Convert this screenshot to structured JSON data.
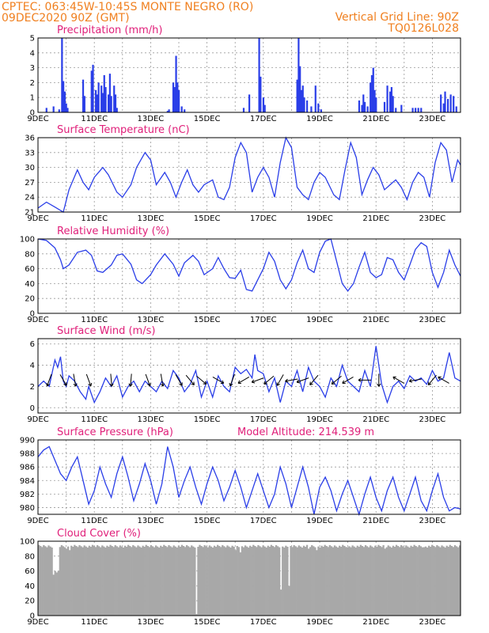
{
  "header": {
    "left_line1": "CPTEC:   063:45W-10:45S   MONTE NEGRO (RO)",
    "left_line2": "09DEC2020 90Z (GMT)",
    "right_line1": "Vertical Grid Line: 90Z",
    "right_line2": "TQ0126L028"
  },
  "colors": {
    "header": "#f08020",
    "panel_title": "#e0207a",
    "series": "#2a3ee8",
    "cloud": "#a8a8a8"
  },
  "chart_data": [
    {
      "type": "bar",
      "title": "Precipitation (mm/h)",
      "x_ticks": [
        "9DEC",
        "11DEC",
        "13DEC",
        "15DEC",
        "17DEC",
        "19DEC",
        "21DEC",
        "23DEC"
      ],
      "yticks": [
        0,
        1,
        2,
        3,
        4,
        5
      ],
      "ylim": [
        0,
        5
      ],
      "xlim": [
        0,
        15
      ],
      "bars": [
        [
          0.3,
          0.3
        ],
        [
          0.55,
          0.4
        ],
        [
          0.75,
          0.2
        ],
        [
          0.85,
          5.0
        ],
        [
          0.9,
          2.1
        ],
        [
          0.95,
          1.4
        ],
        [
          1.0,
          0.6
        ],
        [
          1.05,
          0.3
        ],
        [
          1.6,
          2.2
        ],
        [
          1.65,
          1.1
        ],
        [
          1.9,
          2.8
        ],
        [
          1.95,
          3.2
        ],
        [
          2.05,
          1.5
        ],
        [
          2.1,
          1.2
        ],
        [
          2.15,
          2.0
        ],
        [
          2.25,
          1.8
        ],
        [
          2.3,
          1.3
        ],
        [
          2.35,
          2.5
        ],
        [
          2.4,
          1.7
        ],
        [
          2.5,
          1.2
        ],
        [
          2.55,
          2.6
        ],
        [
          2.6,
          1.1
        ],
        [
          2.7,
          1.8
        ],
        [
          2.75,
          1.2
        ],
        [
          2.8,
          0.3
        ],
        [
          4.6,
          0.1
        ],
        [
          4.65,
          0.2
        ],
        [
          4.8,
          2.0
        ],
        [
          4.85,
          1.7
        ],
        [
          4.9,
          3.8
        ],
        [
          4.95,
          2.0
        ],
        [
          5.0,
          1.5
        ],
        [
          5.1,
          0.4
        ],
        [
          5.2,
          0.2
        ],
        [
          7.3,
          0.3
        ],
        [
          7.5,
          1.2
        ],
        [
          7.85,
          5.0
        ],
        [
          7.9,
          2.4
        ],
        [
          8.0,
          1.0
        ],
        [
          8.05,
          0.5
        ],
        [
          9.2,
          2.2
        ],
        [
          9.25,
          5.0
        ],
        [
          9.3,
          3.1
        ],
        [
          9.35,
          1.5
        ],
        [
          9.4,
          1.8
        ],
        [
          9.45,
          1.0
        ],
        [
          9.55,
          0.8
        ],
        [
          9.7,
          0.4
        ],
        [
          9.85,
          1.8
        ],
        [
          9.95,
          0.6
        ],
        [
          10.05,
          0.2
        ],
        [
          11.4,
          0.8
        ],
        [
          11.5,
          0.5
        ],
        [
          11.55,
          1.2
        ],
        [
          11.6,
          0.7
        ],
        [
          11.7,
          0.4
        ],
        [
          11.8,
          2.0
        ],
        [
          11.85,
          2.5
        ],
        [
          11.9,
          3.0
        ],
        [
          11.95,
          1.5
        ],
        [
          12.0,
          1.0
        ],
        [
          12.3,
          0.7
        ],
        [
          12.4,
          1.8
        ],
        [
          12.5,
          1.4
        ],
        [
          12.55,
          1.7
        ],
        [
          12.6,
          1.1
        ],
        [
          12.7,
          0.3
        ],
        [
          12.9,
          0.5
        ],
        [
          13.3,
          0.3
        ],
        [
          13.4,
          0.3
        ],
        [
          13.5,
          0.3
        ],
        [
          13.6,
          0.3
        ],
        [
          14.3,
          1.2
        ],
        [
          14.4,
          0.6
        ],
        [
          14.45,
          1.4
        ],
        [
          14.55,
          0.9
        ],
        [
          14.65,
          1.2
        ],
        [
          14.75,
          1.1
        ],
        [
          14.85,
          0.4
        ]
      ]
    },
    {
      "type": "line",
      "title": "Surface Temperature (nC)",
      "x_ticks": [
        "9DEC",
        "11DEC",
        "13DEC",
        "15DEC",
        "17DEC",
        "19DEC",
        "21DEC",
        "23DEC"
      ],
      "yticks": [
        21,
        24,
        27,
        30,
        33,
        36
      ],
      "ylim": [
        21,
        36
      ],
      "xlim": [
        0,
        15
      ],
      "x": [
        0,
        0.3,
        0.6,
        0.9,
        1.1,
        1.4,
        1.6,
        1.8,
        2.0,
        2.3,
        2.5,
        2.8,
        3.0,
        3.3,
        3.5,
        3.8,
        4.0,
        4.2,
        4.5,
        4.7,
        4.9,
        5.1,
        5.3,
        5.5,
        5.7,
        5.9,
        6.2,
        6.4,
        6.6,
        6.8,
        7.0,
        7.2,
        7.4,
        7.6,
        7.8,
        8.0,
        8.2,
        8.4,
        8.6,
        8.8,
        9.0,
        9.2,
        9.4,
        9.6,
        9.8,
        10.0,
        10.2,
        10.5,
        10.7,
        10.9,
        11.1,
        11.3,
        11.5,
        11.7,
        11.9,
        12.1,
        12.3,
        12.5,
        12.7,
        12.9,
        13.1,
        13.3,
        13.5,
        13.7,
        13.9,
        14.1,
        14.3,
        14.5,
        14.7,
        14.9,
        15.0
      ],
      "y": [
        21.8,
        23.0,
        22.0,
        21.0,
        25.5,
        29.5,
        27.0,
        25.5,
        28.0,
        30.0,
        28.5,
        25.0,
        24.0,
        26.5,
        30.0,
        33.0,
        31.5,
        26.5,
        29.0,
        27.0,
        24.0,
        27.0,
        29.5,
        26.5,
        25.0,
        26.5,
        27.5,
        24.0,
        23.5,
        26.0,
        32.0,
        35.0,
        33.0,
        25.0,
        28.0,
        30.0,
        28.0,
        24.0,
        31.0,
        36.0,
        34.0,
        26.0,
        24.5,
        23.5,
        27.0,
        29.0,
        28.0,
        24.5,
        23.5,
        29.5,
        35.0,
        32.0,
        24.5,
        27.5,
        30.0,
        28.5,
        25.5,
        26.5,
        27.5,
        26.0,
        23.5,
        27.0,
        29.0,
        28.0,
        24.0,
        31.0,
        35.0,
        33.5,
        27.0,
        31.5,
        30.5
      ]
    },
    {
      "type": "line",
      "title": "Relative Humidity (%)",
      "x_ticks": [
        "9DEC",
        "11DEC",
        "13DEC",
        "15DEC",
        "17DEC",
        "19DEC",
        "21DEC",
        "23DEC"
      ],
      "yticks": [
        0,
        20,
        40,
        60,
        80,
        100
      ],
      "ylim": [
        0,
        100
      ],
      "xlim": [
        0,
        15
      ],
      "x": [
        0,
        0.3,
        0.6,
        0.8,
        0.9,
        1.1,
        1.4,
        1.7,
        1.9,
        2.1,
        2.3,
        2.6,
        2.8,
        3.0,
        3.3,
        3.5,
        3.7,
        4.0,
        4.2,
        4.5,
        4.8,
        5.0,
        5.2,
        5.5,
        5.7,
        5.9,
        6.2,
        6.4,
        6.6,
        6.8,
        7.0,
        7.2,
        7.4,
        7.6,
        7.8,
        8.0,
        8.2,
        8.4,
        8.6,
        8.8,
        9.0,
        9.2,
        9.4,
        9.6,
        9.8,
        10.0,
        10.2,
        10.4,
        10.6,
        10.8,
        11.0,
        11.2,
        11.4,
        11.6,
        11.8,
        12.0,
        12.2,
        12.4,
        12.6,
        12.8,
        13.0,
        13.2,
        13.4,
        13.6,
        13.8,
        14.0,
        14.2,
        14.4,
        14.6,
        14.8,
        15.0
      ],
      "y": [
        100,
        98,
        88,
        72,
        60,
        65,
        82,
        85,
        78,
        57,
        55,
        65,
        78,
        80,
        66,
        45,
        40,
        52,
        65,
        80,
        66,
        50,
        68,
        78,
        70,
        52,
        60,
        75,
        60,
        48,
        47,
        58,
        32,
        30,
        45,
        60,
        82,
        70,
        45,
        33,
        45,
        68,
        85,
        60,
        55,
        82,
        97,
        100,
        70,
        40,
        30,
        40,
        62,
        82,
        55,
        48,
        52,
        75,
        72,
        55,
        45,
        65,
        86,
        95,
        90,
        55,
        35,
        55,
        85,
        65,
        50
      ]
    },
    {
      "type": "line",
      "title": "Surface Wind (m/s)",
      "x_ticks": [
        "9DEC",
        "11DEC",
        "13DEC",
        "15DEC",
        "17DEC",
        "19DEC",
        "21DEC",
        "23DEC"
      ],
      "yticks": [
        0,
        2,
        4,
        6
      ],
      "ylim": [
        -0.5,
        6.5
      ],
      "xlim": [
        0,
        15
      ],
      "x": [
        0,
        0.2,
        0.4,
        0.6,
        0.7,
        0.8,
        0.9,
        1.0,
        1.1,
        1.3,
        1.5,
        1.7,
        1.8,
        2.0,
        2.2,
        2.4,
        2.6,
        2.8,
        3.0,
        3.2,
        3.4,
        3.6,
        3.8,
        4.0,
        4.2,
        4.4,
        4.6,
        4.8,
        5.0,
        5.2,
        5.4,
        5.6,
        5.8,
        6.0,
        6.2,
        6.4,
        6.6,
        6.8,
        7.0,
        7.2,
        7.4,
        7.6,
        7.7,
        7.8,
        8.0,
        8.2,
        8.4,
        8.6,
        8.8,
        9.0,
        9.2,
        9.4,
        9.6,
        9.8,
        10.0,
        10.2,
        10.4,
        10.6,
        10.8,
        11.0,
        11.2,
        11.4,
        11.6,
        11.8,
        12.0,
        12.2,
        12.4,
        12.6,
        12.8,
        13.0,
        13.2,
        13.4,
        13.6,
        13.8,
        14.0,
        14.2,
        14.4,
        14.6,
        14.8,
        15.0
      ],
      "y": [
        2.0,
        2.5,
        2.0,
        4.5,
        3.8,
        4.8,
        2.5,
        2.0,
        3.0,
        2.5,
        1.5,
        0.8,
        2.0,
        0.5,
        1.5,
        2.8,
        2.0,
        3.0,
        1.0,
        2.0,
        2.5,
        1.5,
        2.5,
        2.0,
        1.5,
        2.5,
        1.8,
        3.5,
        2.8,
        1.5,
        2.2,
        3.5,
        1.0,
        2.5,
        1.0,
        3.0,
        2.0,
        1.5,
        3.8,
        3.2,
        3.6,
        2.8,
        5.0,
        3.5,
        3.2,
        1.5,
        2.8,
        0.5,
        2.5,
        2.0,
        3.5,
        1.5,
        3.8,
        2.5,
        2.0,
        1.0,
        2.8,
        2.0,
        4.0,
        2.5,
        2.0,
        1.5,
        3.5,
        2.0,
        5.8,
        2.2,
        0.5,
        2.0,
        2.5,
        1.8,
        3.0,
        2.5,
        2.8,
        2.2,
        3.5,
        2.5,
        2.8,
        5.2,
        2.8,
        2.5
      ],
      "wind_arrows": [
        [
          0.4,
          200
        ],
        [
          0.9,
          150
        ],
        [
          1.3,
          170
        ],
        [
          1.8,
          160
        ],
        [
          2.6,
          175
        ],
        [
          3.3,
          185
        ],
        [
          3.9,
          160
        ],
        [
          4.4,
          170
        ],
        [
          5.0,
          150
        ],
        [
          5.4,
          140
        ],
        [
          5.8,
          130
        ],
        [
          6.4,
          120
        ],
        [
          6.9,
          200
        ],
        [
          7.3,
          240
        ],
        [
          7.8,
          250
        ],
        [
          8.2,
          230
        ],
        [
          8.6,
          210
        ],
        [
          9.0,
          260
        ],
        [
          9.4,
          250
        ],
        [
          9.8,
          220
        ],
        [
          10.6,
          230
        ],
        [
          11.0,
          240
        ],
        [
          11.6,
          270
        ],
        [
          12.1,
          180
        ],
        [
          12.8,
          300
        ],
        [
          13.4,
          260
        ],
        [
          14.0,
          220
        ],
        [
          14.4,
          300
        ]
      ]
    },
    {
      "type": "line",
      "title": "Surface Pressure (hPa)",
      "annotation": "Model Altitude: 214.539  m",
      "x_ticks": [
        "9DEC",
        "11DEC",
        "13DEC",
        "15DEC",
        "17DEC",
        "19DEC",
        "21DEC",
        "23DEC"
      ],
      "yticks": [
        980,
        982,
        984,
        986,
        988,
        990
      ],
      "ylim": [
        979,
        990
      ],
      "xlim": [
        0,
        15
      ],
      "x": [
        0,
        0.2,
        0.4,
        0.6,
        0.8,
        1.0,
        1.2,
        1.4,
        1.6,
        1.8,
        2.0,
        2.2,
        2.4,
        2.6,
        2.8,
        3.0,
        3.2,
        3.4,
        3.6,
        3.8,
        4.0,
        4.2,
        4.4,
        4.6,
        4.8,
        5.0,
        5.2,
        5.4,
        5.6,
        5.8,
        6.0,
        6.2,
        6.4,
        6.6,
        6.8,
        7.0,
        7.2,
        7.4,
        7.6,
        7.8,
        8.0,
        8.2,
        8.4,
        8.6,
        8.8,
        9.0,
        9.2,
        9.4,
        9.6,
        9.8,
        10.0,
        10.2,
        10.4,
        10.6,
        10.8,
        11.0,
        11.2,
        11.4,
        11.6,
        11.8,
        12.0,
        12.2,
        12.4,
        12.6,
        12.8,
        13.0,
        13.2,
        13.4,
        13.6,
        13.8,
        14.0,
        14.2,
        14.4,
        14.6,
        14.8,
        15.0
      ],
      "y": [
        987.5,
        988.5,
        989.0,
        987.0,
        985.0,
        984.0,
        986.0,
        987.5,
        984.0,
        980.5,
        982.5,
        986.0,
        983.5,
        981.5,
        985.0,
        987.5,
        984.5,
        981.0,
        983.5,
        986.5,
        984.0,
        980.5,
        983.5,
        989.0,
        986.0,
        981.5,
        984.0,
        986.0,
        983.0,
        980.5,
        983.5,
        986.0,
        984.0,
        981.0,
        983.0,
        985.5,
        983.0,
        980.0,
        982.5,
        985.0,
        982.5,
        980.0,
        982.0,
        986.0,
        983.5,
        980.0,
        983.0,
        986.0,
        983.0,
        979.0,
        983.0,
        984.5,
        982.5,
        979.5,
        982.0,
        984.0,
        981.5,
        979.0,
        982.0,
        984.5,
        981.5,
        979.5,
        982.5,
        984.5,
        981.5,
        979.5,
        982.0,
        984.5,
        981.0,
        979.5,
        982.5,
        985.0,
        981.5,
        979.5,
        980.0,
        979.8
      ]
    },
    {
      "type": "bar",
      "title": "Cloud Cover (%)",
      "x_ticks": [
        "9DEC",
        "11DEC",
        "13DEC",
        "15DEC",
        "17DEC",
        "19DEC",
        "21DEC",
        "23DEC"
      ],
      "yticks": [
        0,
        20,
        40,
        60,
        80,
        100
      ],
      "ylim": [
        0,
        100
      ],
      "xlim": [
        0,
        15
      ],
      "baseline": 95,
      "dips": [
        [
          0.55,
          55
        ],
        [
          0.6,
          60
        ],
        [
          0.65,
          58
        ],
        [
          0.7,
          60
        ],
        [
          1.0,
          90
        ],
        [
          1.1,
          88
        ],
        [
          5.6,
          2
        ],
        [
          7.0,
          88
        ],
        [
          7.2,
          85
        ],
        [
          8.6,
          35
        ],
        [
          8.9,
          40
        ],
        [
          9.6,
          90
        ],
        [
          9.9,
          88
        ],
        [
          11.0,
          92
        ],
        [
          12.3,
          90
        ],
        [
          13.7,
          92
        ]
      ]
    }
  ]
}
